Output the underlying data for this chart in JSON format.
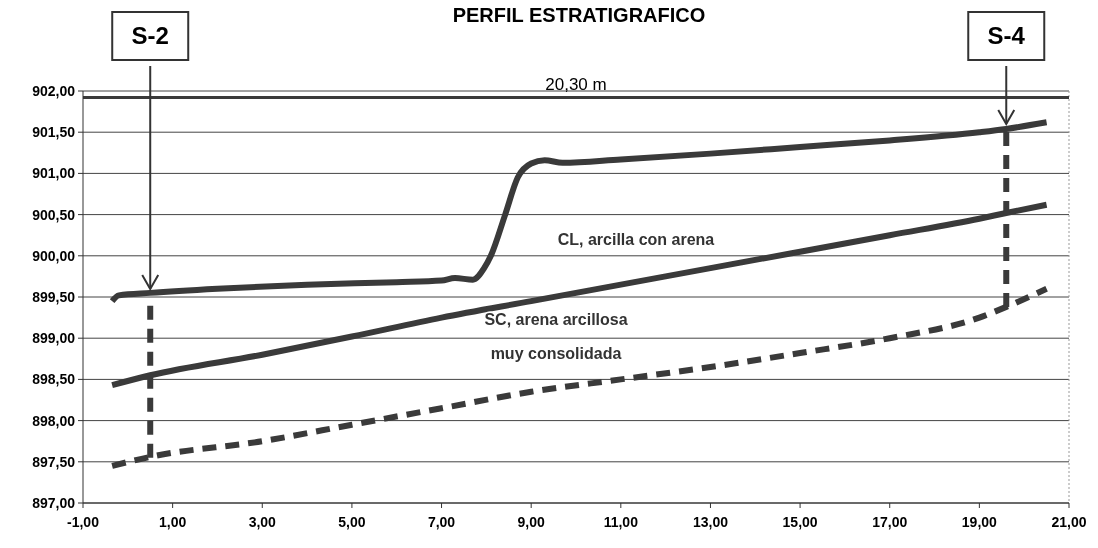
{
  "chart_data": {
    "type": "line",
    "title": "PERFIL ESTRATIGRAFICO",
    "xlim": [
      -1,
      21
    ],
    "xticks": [
      {
        "value": -1,
        "label": "-1,00"
      },
      {
        "value": 1,
        "label": "1,00"
      },
      {
        "value": 3,
        "label": "3,00"
      },
      {
        "value": 5,
        "label": "5,00"
      },
      {
        "value": 7,
        "label": "7,00"
      },
      {
        "value": 9,
        "label": "9,00"
      },
      {
        "value": 11,
        "label": "11,00"
      },
      {
        "value": 13,
        "label": "13,00"
      },
      {
        "value": 15,
        "label": "15,00"
      },
      {
        "value": 17,
        "label": "17,00"
      },
      {
        "value": 19,
        "label": "19,00"
      },
      {
        "value": 21,
        "label": "21,00"
      }
    ],
    "ylim": [
      897,
      902
    ],
    "yticks": [
      {
        "value": 897,
        "label": "897,00"
      },
      {
        "value": 897.5,
        "label": "897,50"
      },
      {
        "value": 898,
        "label": "898,00"
      },
      {
        "value": 898.5,
        "label": "898,50"
      },
      {
        "value": 899,
        "label": "899,00"
      },
      {
        "value": 899.5,
        "label": "899,50"
      },
      {
        "value": 900,
        "label": "900,00"
      },
      {
        "value": 900.5,
        "label": "900,50"
      },
      {
        "value": 901,
        "label": "901,00"
      },
      {
        "value": 901.5,
        "label": "901,50"
      },
      {
        "value": 902,
        "label": "902,00"
      }
    ],
    "grid": "y",
    "marker": "none",
    "series": [
      {
        "color": "#3a3a3a",
        "line_style": "solid",
        "x": [
          -0.35,
          -0.2,
          0.5,
          2,
          4,
          6,
          7,
          7.3,
          7.7,
          7.95,
          8.1,
          8.42,
          8.7,
          9,
          9.3,
          9.7,
          11,
          13,
          15,
          17,
          19,
          19.6,
          20.5
        ],
        "values": [
          899.45,
          899.52,
          899.55,
          899.6,
          899.65,
          899.68,
          899.7,
          899.73,
          899.71,
          899.85,
          900,
          900.5,
          900.95,
          901.12,
          901.16,
          901.13,
          901.17,
          901.24,
          901.32,
          901.4,
          901.5,
          901.54,
          901.62
        ]
      },
      {
        "color": "#3a3a3a",
        "line_style": "solid",
        "x": [
          -0.35,
          0.5,
          3,
          5,
          7,
          9,
          11,
          13,
          15,
          17,
          19,
          19.6,
          20.5
        ],
        "values": [
          898.43,
          898.55,
          898.8,
          899.02,
          899.25,
          899.45,
          899.65,
          899.85,
          900.05,
          900.25,
          900.45,
          900.52,
          900.62
        ]
      },
      {
        "color": "#3a3a3a",
        "line_style": "dashed",
        "x": [
          -0.35,
          0.5,
          3,
          5,
          7,
          9,
          11,
          13,
          15,
          17,
          19,
          19.6,
          20.5
        ],
        "values": [
          897.45,
          897.56,
          897.75,
          897.95,
          898.15,
          898.35,
          898.5,
          898.65,
          898.82,
          899,
          899.25,
          899.38,
          899.6
        ]
      },
      {
        "color": "#3a3a3a",
        "line_style": "dashed",
        "x": [
          0.5,
          0.5
        ],
        "values": [
          897.55,
          899.45
        ]
      },
      {
        "color": "#3a3a3a",
        "line_style": "dashed",
        "x": [
          19.6,
          19.6
        ],
        "values": [
          899.38,
          901.55
        ]
      }
    ],
    "ref_lines": [
      {
        "axis": "y",
        "value": 901.92,
        "label": "20,30 m",
        "color": "#3a3a3a"
      }
    ],
    "annotations": [
      {
        "text": "S-2",
        "x": 0.5,
        "y": 899.55
      },
      {
        "text": "S-4",
        "x": 19.6,
        "y": 901.55
      },
      "CL, arcilla con arena",
      "SC, arena arcillosa",
      "muy consolidada"
    ]
  }
}
